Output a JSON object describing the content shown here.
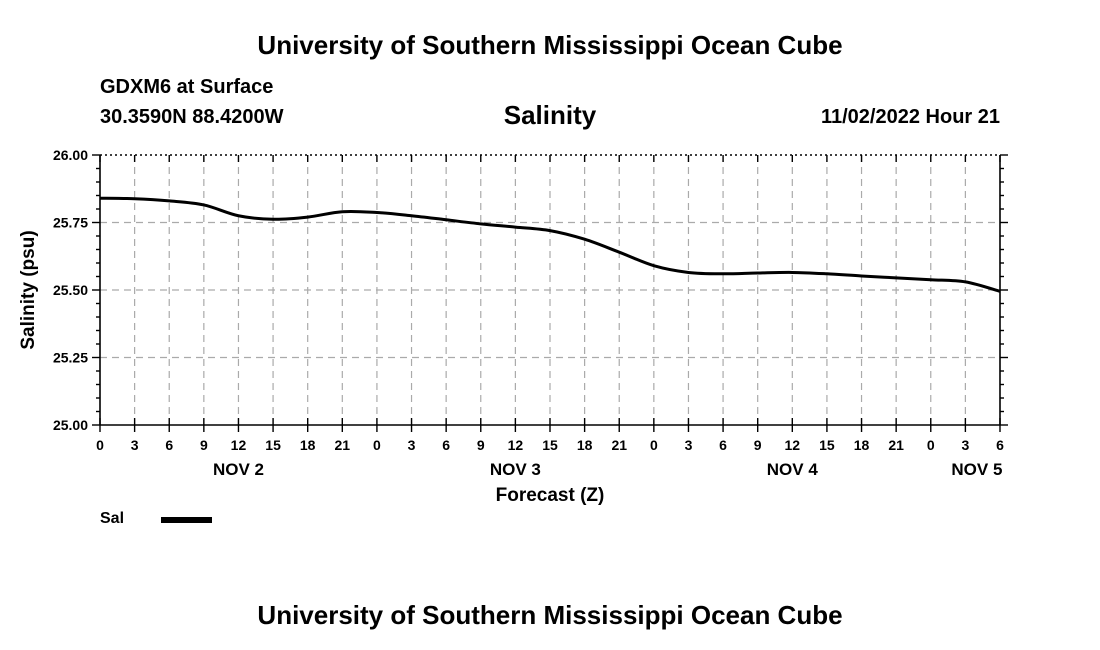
{
  "header": {
    "title": "University of Southern Mississippi Ocean Cube",
    "station": "GDXM6 at Surface",
    "coords": "30.3590N  88.4200W",
    "plot_title": "Salinity",
    "run_time": "11/02/2022 Hour 21"
  },
  "footer": {
    "title": "University of Southern Mississippi Ocean Cube"
  },
  "legend": {
    "label": "Sal",
    "color": "#000000"
  },
  "chart_data": {
    "type": "line",
    "title": "Salinity",
    "xlabel": "Forecast (Z)",
    "ylabel": "Salinity (psu)",
    "ylim": [
      25.0,
      26.0
    ],
    "yticks": [
      "25.00",
      "25.25",
      "25.50",
      "25.75",
      "26.00"
    ],
    "xlim_hours": [
      0,
      78
    ],
    "xtick_labels": [
      "0",
      "3",
      "6",
      "9",
      "12",
      "15",
      "18",
      "21",
      "0",
      "3",
      "6",
      "9",
      "12",
      "15",
      "18",
      "21",
      "0",
      "3",
      "6",
      "9",
      "12",
      "15",
      "18",
      "21",
      "0",
      "3",
      "6"
    ],
    "day_labels": [
      {
        "label": "NOV 2",
        "hour": 12
      },
      {
        "label": "NOV 3",
        "hour": 36
      },
      {
        "label": "NOV 4",
        "hour": 60
      },
      {
        "label": "NOV 5",
        "hour": 76
      }
    ],
    "grid": true,
    "series": [
      {
        "name": "Sal",
        "color": "#000000",
        "x": [
          0,
          3,
          6,
          9,
          12,
          15,
          18,
          21,
          24,
          27,
          30,
          33,
          36,
          39,
          42,
          45,
          48,
          51,
          54,
          57,
          60,
          63,
          66,
          69,
          72,
          75,
          78
        ],
        "y": [
          25.84,
          25.838,
          25.83,
          25.815,
          25.775,
          25.762,
          25.77,
          25.79,
          25.787,
          25.775,
          25.76,
          25.745,
          25.733,
          25.72,
          25.688,
          25.64,
          25.59,
          25.565,
          25.56,
          25.563,
          25.565,
          25.56,
          25.552,
          25.545,
          25.538,
          25.53,
          25.495
        ]
      }
    ]
  }
}
